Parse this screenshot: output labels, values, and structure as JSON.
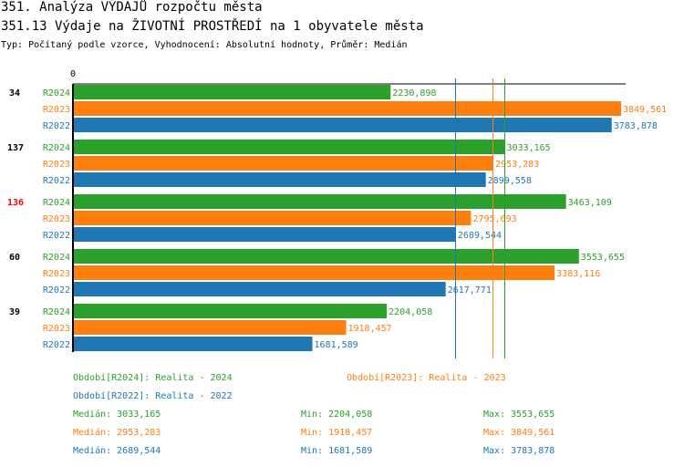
{
  "title": "351. Analýza VÝDAJŮ rozpočtu města",
  "subtitle": "351.13 Výdaje na ŽIVOTNÍ PROSTŘEDÍ na 1 obyvatele města",
  "info": "Typ: Počítaný podle vzorce, Vyhodnocení: Absolutní hodnoty, Průměr: Medián",
  "colors": {
    "R2024": "#2ca02c",
    "R2023": "#ff7f0e",
    "R2022": "#1f77b4",
    "highlight": "#ff0000"
  },
  "chart_data": {
    "type": "bar",
    "orientation": "horizontal",
    "xmin_label": "0",
    "xlim": [
      0,
      3849.561
    ],
    "groups": [
      {
        "label": "34",
        "highlight": false,
        "bars": [
          {
            "series": "R2024",
            "value": 2230.898,
            "text": "2230,898"
          },
          {
            "series": "R2023",
            "value": 3849.561,
            "text": "3849,561"
          },
          {
            "series": "R2022",
            "value": 3783.878,
            "text": "3783,878"
          }
        ]
      },
      {
        "label": "137",
        "highlight": false,
        "bars": [
          {
            "series": "R2024",
            "value": 3033.165,
            "text": "3033,165"
          },
          {
            "series": "R2023",
            "value": 2953.283,
            "text": "2953,283"
          },
          {
            "series": "R2022",
            "value": 2899.558,
            "text": "2899,558"
          }
        ]
      },
      {
        "label": "136",
        "highlight": true,
        "bars": [
          {
            "series": "R2024",
            "value": 3463.109,
            "text": "3463,109"
          },
          {
            "series": "R2023",
            "value": 2795.693,
            "text": "2795,693"
          },
          {
            "series": "R2022",
            "value": 2689.544,
            "text": "2689,544"
          }
        ]
      },
      {
        "label": "60",
        "highlight": false,
        "bars": [
          {
            "series": "R2024",
            "value": 3553.655,
            "text": "3553,655"
          },
          {
            "series": "R2023",
            "value": 3383.116,
            "text": "3383,116"
          },
          {
            "series": "R2022",
            "value": 2617.771,
            "text": "2617,771"
          }
        ]
      },
      {
        "label": "39",
        "highlight": false,
        "bars": [
          {
            "series": "R2024",
            "value": 2204.058,
            "text": "2204,058"
          },
          {
            "series": "R2023",
            "value": 1918.457,
            "text": "1918,457"
          },
          {
            "series": "R2022",
            "value": 1681.589,
            "text": "1681,589"
          }
        ]
      }
    ],
    "medians": [
      {
        "series": "R2022",
        "value": 2689.544
      },
      {
        "series": "R2023",
        "value": 2953.283
      },
      {
        "series": "R2024",
        "value": 3033.165
      }
    ],
    "legend": [
      {
        "series": "R2024",
        "text": "Období[R2024]: Realita - 2024"
      },
      {
        "series": "R2023",
        "text": "Období[R2023]: Realita - 2023"
      },
      {
        "series": "R2022",
        "text": "Období[R2022]: Realita - 2022"
      }
    ],
    "stats": [
      {
        "series": "R2024",
        "median": "Medián: 3033,165",
        "min": "Min: 2204,058",
        "max": "Max: 3553,655"
      },
      {
        "series": "R2023",
        "median": "Medián: 2953,283",
        "min": "Min: 1918,457",
        "max": "Max: 3849,561"
      },
      {
        "series": "R2022",
        "median": "Medián: 2689,544",
        "min": "Min: 1681,589",
        "max": "Max: 3783,878"
      }
    ]
  }
}
